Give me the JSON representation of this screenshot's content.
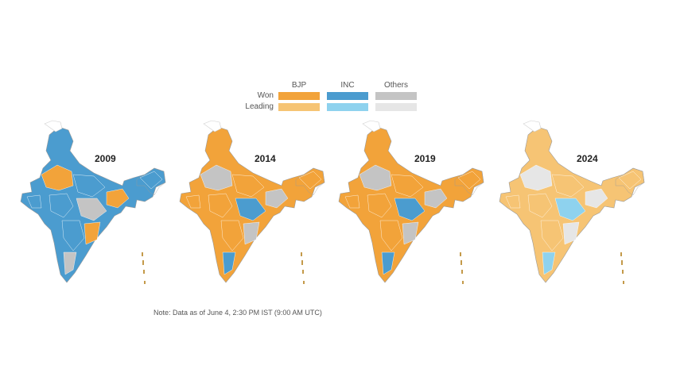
{
  "legend": {
    "columns": [
      "BJP",
      "INC",
      "Others"
    ],
    "rows": [
      "Won",
      "Leading"
    ],
    "colors": {
      "bjp_won": "#f2a33a",
      "inc_won": "#4b9ccf",
      "oth_won": "#c4c4c4",
      "bjp_lead": "#f6c474",
      "inc_lead": "#8ed2ee",
      "oth_lead": "#e6e6e6"
    }
  },
  "maps": [
    {
      "year": "2009",
      "dominant": "inc_won",
      "secondary": "bjp_won",
      "tertiary": "oth_won"
    },
    {
      "year": "2014",
      "dominant": "bjp_won",
      "secondary": "oth_won",
      "tertiary": "inc_won"
    },
    {
      "year": "2019",
      "dominant": "bjp_won",
      "secondary": "oth_won",
      "tertiary": "inc_won"
    },
    {
      "year": "2024",
      "dominant": "bjp_lead",
      "secondary": "oth_lead",
      "tertiary": "inc_lead"
    }
  ],
  "note": "Note: Data as of June 4, 2:30 PM IST (9:00 AM UTC)"
}
